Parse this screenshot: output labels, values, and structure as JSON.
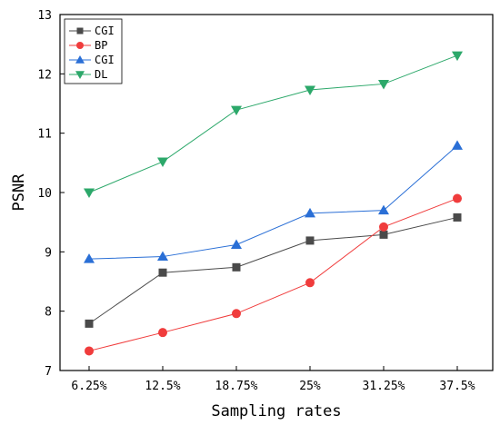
{
  "chart_data": {
    "type": "line",
    "categories": [
      "6.25%",
      "12.5%",
      "18.75%",
      "25%",
      "31.25%",
      "37.5%"
    ],
    "xlabel": "Sampling rates",
    "ylabel": "PSNR",
    "ylim": [
      7,
      13
    ],
    "yticks": [
      "7",
      "8",
      "9",
      "10",
      "11",
      "12",
      "13"
    ],
    "grid": false,
    "legend_position": "top-left",
    "series": [
      {
        "name": "CGI",
        "color": "#4a4a4a",
        "marker": "square",
        "values": [
          7.79,
          8.65,
          8.74,
          9.19,
          9.29,
          9.58
        ]
      },
      {
        "name": "BP",
        "color": "#f03c3c",
        "marker": "circle",
        "values": [
          7.33,
          7.64,
          7.96,
          8.48,
          9.42,
          9.9
        ]
      },
      {
        "name": "CGI",
        "color": "#2a6fd6",
        "marker": "triangle-up",
        "values": [
          8.88,
          8.92,
          9.12,
          9.65,
          9.7,
          10.79
        ]
      },
      {
        "name": "DL",
        "color": "#2ca86a",
        "marker": "triangle-down",
        "values": [
          10.0,
          10.52,
          11.39,
          11.73,
          11.83,
          12.31
        ]
      }
    ]
  }
}
